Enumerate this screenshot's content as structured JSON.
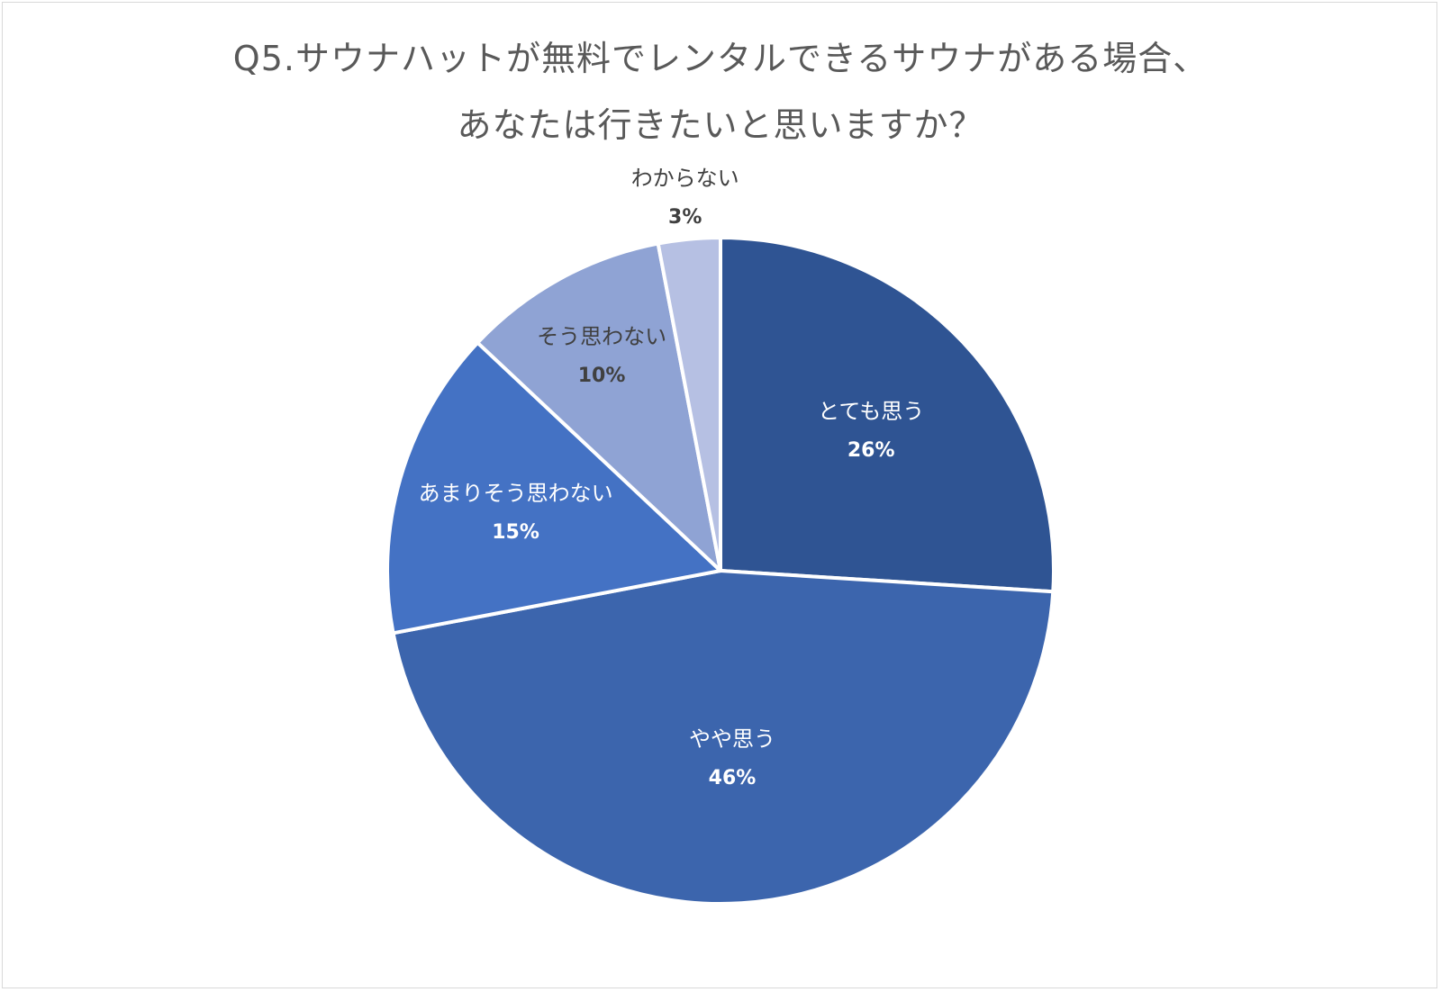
{
  "chart_data": {
    "type": "pie",
    "title_lines": [
      "Q5.サウナハットが無料でレンタルできるサウナがある場合、",
      "あなたは行きたいと思いますか？"
    ],
    "start_angle_deg": 0,
    "direction": "clockwise",
    "legend": "none",
    "slices": [
      {
        "name": "とても思う",
        "value": 26,
        "label": "26%",
        "color": "#2f5493",
        "label_color": "#ffffff"
      },
      {
        "name": "やや思う",
        "value": 46,
        "label": "46%",
        "color": "#3c65ad",
        "label_color": "#ffffff"
      },
      {
        "name": "あまりそう思わない",
        "value": 15,
        "label": "15%",
        "color": "#4472c4",
        "label_color": "#ffffff"
      },
      {
        "name": "そう思わない",
        "value": 10,
        "label": "10%",
        "color": "#8fa3d4",
        "label_color": "#404040"
      },
      {
        "name": "わからない",
        "value": 3,
        "label": "3%",
        "color": "#b6c0e3",
        "label_color": "#404040"
      }
    ]
  }
}
